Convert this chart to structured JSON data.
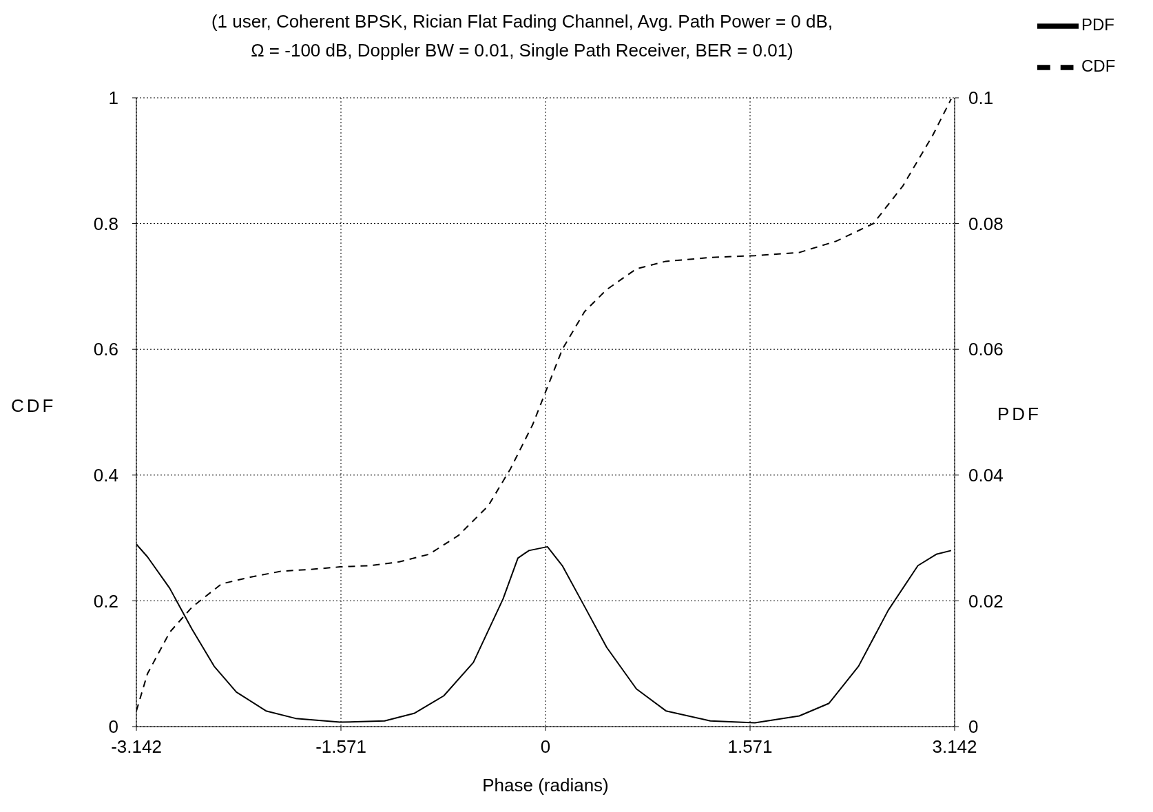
{
  "chart_data": {
    "type": "line",
    "title": "(1 user, Coherent BPSK, Rician Flat Fading Channel, Avg. Path Power = 0 dB,",
    "subtitle": "Ω = -100 dB, Doppler BW = 0.01, Single Path Receiver, BER = 0.01)",
    "xlabel": "Phase    (radians)",
    "ylabel": "CDF",
    "y2label": "PDF",
    "xlim": [
      -3.142,
      3.142
    ],
    "xticks": [
      -3.142,
      -1.571,
      0,
      1.571,
      3.142
    ],
    "ylim": [
      0,
      1
    ],
    "yticks": [
      0,
      0.2,
      0.4,
      0.6,
      0.8,
      1
    ],
    "y2lim": [
      0,
      0.1
    ],
    "y2ticks": [
      0,
      0.02,
      0.04,
      0.06,
      0.08,
      0.1
    ],
    "grid": true,
    "legend": "top right",
    "series": [
      {
        "name": "PDF",
        "color": "#000000",
        "axis": "y2",
        "line_style": "solid",
        "x": [
          -3.142,
          -3.057,
          -2.886,
          -2.715,
          -2.545,
          -2.374,
          -2.147,
          -1.919,
          -1.578,
          -1.236,
          -1.009,
          -0.781,
          -0.554,
          -0.326,
          -0.212,
          -0.127,
          0.015,
          0.129,
          0.3,
          0.47,
          0.698,
          0.925,
          1.266,
          1.608,
          1.949,
          2.177,
          2.404,
          2.632,
          2.86,
          3.001,
          3.115
        ],
        "values": [
          0.029,
          0.027,
          0.022,
          0.0155,
          0.0096,
          0.0055,
          0.0025,
          0.0013,
          0.0007,
          0.0009,
          0.0021,
          0.0049,
          0.0102,
          0.0203,
          0.0268,
          0.028,
          0.0286,
          0.0256,
          0.0191,
          0.0126,
          0.006,
          0.0025,
          0.0009,
          0.0006,
          0.0017,
          0.0037,
          0.0096,
          0.0185,
          0.0256,
          0.0274,
          0.028
        ]
      },
      {
        "name": "CDF",
        "color": "#000000",
        "axis": "y",
        "line_style": "dashed",
        "x": [
          -3.142,
          -3.057,
          -2.886,
          -2.715,
          -2.488,
          -2.26,
          -2.033,
          -1.805,
          -1.578,
          -1.35,
          -1.123,
          -0.895,
          -0.668,
          -0.44,
          -0.269,
          -0.099,
          0.015,
          0.129,
          0.3,
          0.47,
          0.698,
          0.925,
          1.266,
          1.608,
          1.949,
          2.233,
          2.518,
          2.745,
          2.973,
          3.115
        ],
        "values": [
          0.025,
          0.084,
          0.15,
          0.19,
          0.227,
          0.238,
          0.247,
          0.25,
          0.254,
          0.256,
          0.262,
          0.274,
          0.304,
          0.351,
          0.41,
          0.48,
          0.54,
          0.6,
          0.66,
          0.695,
          0.728,
          0.74,
          0.746,
          0.749,
          0.754,
          0.772,
          0.8,
          0.86,
          0.94,
          0.998
        ]
      }
    ]
  }
}
